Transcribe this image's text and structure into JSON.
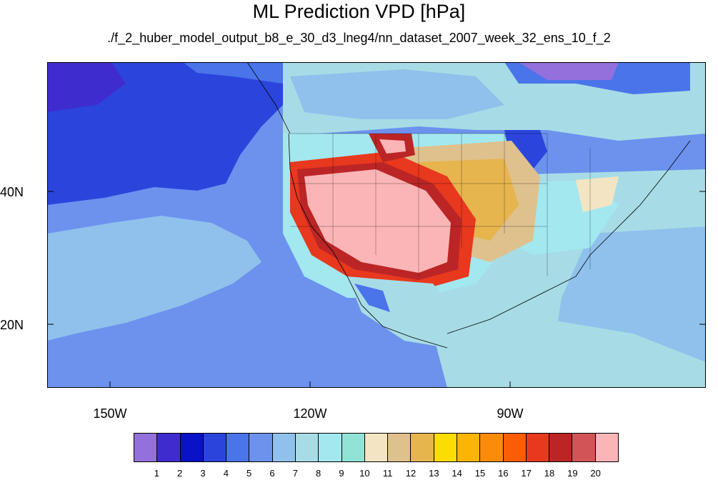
{
  "title": "ML Prediction VPD [hPa]",
  "subtitle": "./f_2_huber_model_output_b8_e_30_d3_lneg4/nn_dataset_2007_week_32_ens_10_f_2",
  "map": {
    "lat_labels": [
      "40N",
      "20N"
    ],
    "lon_labels": [
      "150W",
      "120W",
      "90W"
    ]
  },
  "colorbar": {
    "colors": [
      "#9370db",
      "#3f2ccf",
      "#0a12c8",
      "#2b45dc",
      "#4a74ea",
      "#6c92ee",
      "#8fc1ec",
      "#a7dce6",
      "#a3e8ef",
      "#90e4d6",
      "#f3e5c3",
      "#dfc18e",
      "#e7b54e",
      "#fbdc03",
      "#fcb504",
      "#fa8b0b",
      "#f95d06",
      "#e8381e",
      "#bb2526",
      "#d25457",
      "#fbb5b6"
    ],
    "labels": [
      "1",
      "2",
      "3",
      "4",
      "5",
      "6",
      "7",
      "8",
      "9",
      "10",
      "11",
      "12",
      "13",
      "14",
      "15",
      "16",
      "17",
      "18",
      "19",
      "20"
    ]
  }
}
